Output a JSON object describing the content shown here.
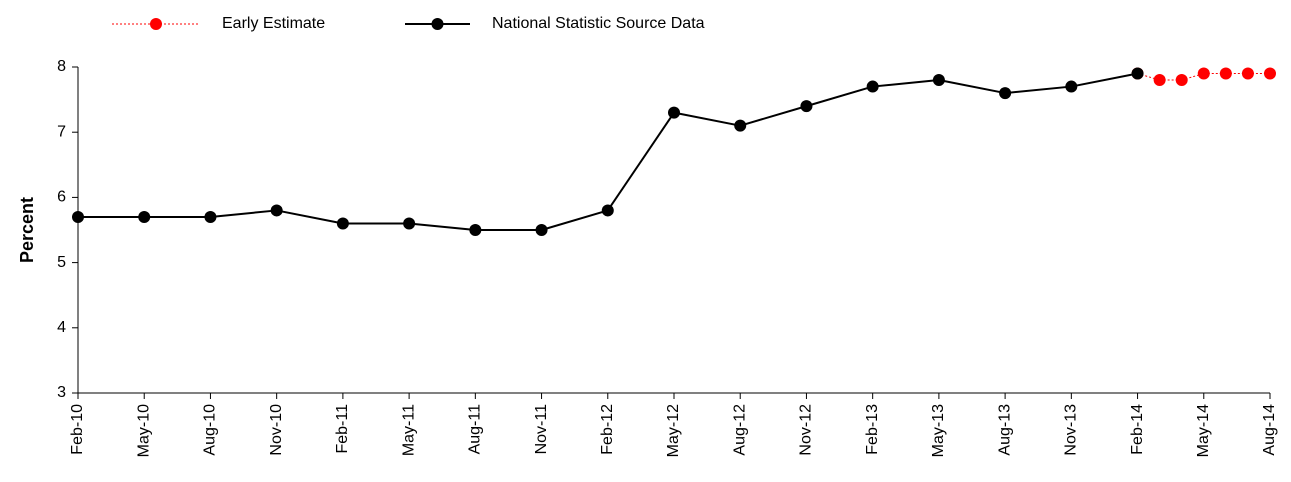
{
  "chart_data": {
    "type": "line",
    "y_label": "Percent",
    "categories": [
      "Feb-10",
      null,
      null,
      "May-10",
      null,
      null,
      "Aug-10",
      null,
      null,
      "Nov-10",
      null,
      null,
      "Feb-11",
      null,
      null,
      "May-11",
      null,
      null,
      "Aug-11",
      null,
      null,
      "Nov-11",
      null,
      null,
      "Feb-12",
      null,
      null,
      "May-12",
      null,
      null,
      "Aug-12",
      null,
      null,
      "Nov-12",
      null,
      null,
      "Feb-13",
      null,
      null,
      "May-13",
      null,
      null,
      "Aug-13",
      null,
      null,
      "Nov-13",
      null,
      null,
      "Feb-14",
      null,
      null,
      "May-14",
      null,
      null,
      "Aug-14"
    ],
    "series": [
      {
        "name": "Early Estimate",
        "color": "#ff0000",
        "dashed": true,
        "values": [
          null,
          null,
          null,
          null,
          null,
          null,
          null,
          null,
          null,
          null,
          null,
          null,
          null,
          null,
          null,
          null,
          null,
          null,
          null,
          null,
          null,
          null,
          null,
          null,
          null,
          null,
          null,
          null,
          null,
          null,
          null,
          null,
          null,
          null,
          null,
          null,
          null,
          null,
          null,
          null,
          null,
          null,
          null,
          null,
          null,
          null,
          null,
          null,
          7.9,
          7.8,
          7.8,
          7.9,
          7.9,
          7.9,
          7.9
        ]
      },
      {
        "name": "National Statistic Source Data",
        "color": "#000000",
        "dashed": false,
        "values": [
          5.7,
          null,
          null,
          5.7,
          null,
          null,
          5.7,
          null,
          null,
          5.8,
          null,
          null,
          5.6,
          null,
          null,
          5.6,
          null,
          null,
          5.5,
          null,
          null,
          5.5,
          null,
          null,
          5.8,
          null,
          null,
          7.3,
          null,
          null,
          7.1,
          null,
          null,
          7.4,
          null,
          null,
          7.7,
          null,
          null,
          7.8,
          null,
          null,
          7.6,
          null,
          null,
          7.7,
          null,
          null,
          7.9,
          null,
          null,
          null,
          null,
          null,
          null
        ]
      }
    ],
    "ylim": [
      3,
      8
    ],
    "yticks": [
      3,
      4,
      5,
      6,
      7,
      8
    ],
    "grid": false,
    "legend": "top"
  }
}
